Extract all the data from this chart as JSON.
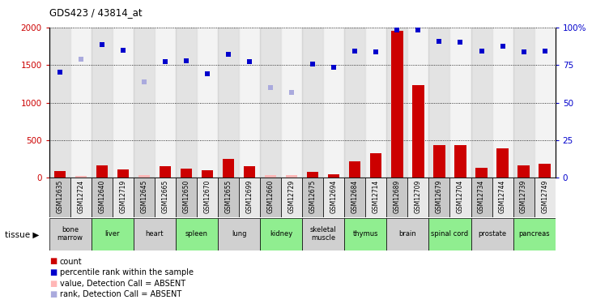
{
  "title": "GDS423 / 43814_at",
  "samples": [
    "GSM12635",
    "GSM12724",
    "GSM12640",
    "GSM12719",
    "GSM12645",
    "GSM12665",
    "GSM12650",
    "GSM12670",
    "GSM12655",
    "GSM12699",
    "GSM12660",
    "GSM12729",
    "GSM12675",
    "GSM12694",
    "GSM12684",
    "GSM12714",
    "GSM12689",
    "GSM12709",
    "GSM12679",
    "GSM12704",
    "GSM12734",
    "GSM12744",
    "GSM12739",
    "GSM12749"
  ],
  "tissues": [
    {
      "name": "bone\nmarrow",
      "start": 0,
      "end": 2,
      "color": "#d0d0d0"
    },
    {
      "name": "liver",
      "start": 2,
      "end": 4,
      "color": "#90ee90"
    },
    {
      "name": "heart",
      "start": 4,
      "end": 6,
      "color": "#d0d0d0"
    },
    {
      "name": "spleen",
      "start": 6,
      "end": 8,
      "color": "#90ee90"
    },
    {
      "name": "lung",
      "start": 8,
      "end": 10,
      "color": "#d0d0d0"
    },
    {
      "name": "kidney",
      "start": 10,
      "end": 12,
      "color": "#90ee90"
    },
    {
      "name": "skeletal\nmuscle",
      "start": 12,
      "end": 14,
      "color": "#d0d0d0"
    },
    {
      "name": "thymus",
      "start": 14,
      "end": 16,
      "color": "#90ee90"
    },
    {
      "name": "brain",
      "start": 16,
      "end": 18,
      "color": "#d0d0d0"
    },
    {
      "name": "spinal cord",
      "start": 18,
      "end": 20,
      "color": "#90ee90"
    },
    {
      "name": "prostate",
      "start": 20,
      "end": 22,
      "color": "#d0d0d0"
    },
    {
      "name": "pancreas",
      "start": 22,
      "end": 24,
      "color": "#90ee90"
    }
  ],
  "bar_values": [
    90,
    30,
    170,
    110,
    40,
    155,
    120,
    100,
    255,
    155,
    40,
    40,
    80,
    50,
    220,
    330,
    1950,
    1230,
    440,
    440,
    135,
    390,
    170,
    185
  ],
  "bar_absent": [
    false,
    true,
    false,
    false,
    true,
    false,
    false,
    false,
    false,
    false,
    true,
    true,
    false,
    false,
    false,
    false,
    false,
    false,
    false,
    false,
    false,
    false,
    false,
    false
  ],
  "rank_values": [
    1410,
    null,
    1770,
    1700,
    null,
    1540,
    1560,
    1380,
    1640,
    1540,
    null,
    null,
    1510,
    1470,
    1690,
    1670,
    1970,
    1970,
    1810,
    1800,
    1690,
    1750,
    1670,
    1680
  ],
  "rank_absent_values": [
    null,
    1580,
    null,
    null,
    1280,
    null,
    null,
    null,
    null,
    null,
    1200,
    1140,
    null,
    null,
    null,
    null,
    null,
    null,
    null,
    null,
    null,
    null,
    null,
    null
  ],
  "ylim_left": [
    0,
    2000
  ],
  "ylim_right": [
    0,
    100
  ],
  "yticks_left": [
    0,
    500,
    1000,
    1500,
    2000
  ],
  "yticks_right": [
    0,
    25,
    50,
    75,
    100
  ],
  "bar_color": "#cc0000",
  "bar_absent_color": "#ffb6b6",
  "rank_color": "#0000cc",
  "rank_absent_color": "#aaaadd",
  "bg_color": "#ffffff",
  "col_shade_dark": "#c8c8c8",
  "col_shade_light": "#e8e8e8",
  "grid_color": "#000000",
  "ylabel_left_color": "#cc0000",
  "ylabel_right_color": "#0000cc",
  "legend_items": [
    {
      "color": "#cc0000",
      "label": "count"
    },
    {
      "color": "#0000cc",
      "label": "percentile rank within the sample"
    },
    {
      "color": "#ffb6b6",
      "label": "value, Detection Call = ABSENT"
    },
    {
      "color": "#aaaadd",
      "label": "rank, Detection Call = ABSENT"
    }
  ]
}
